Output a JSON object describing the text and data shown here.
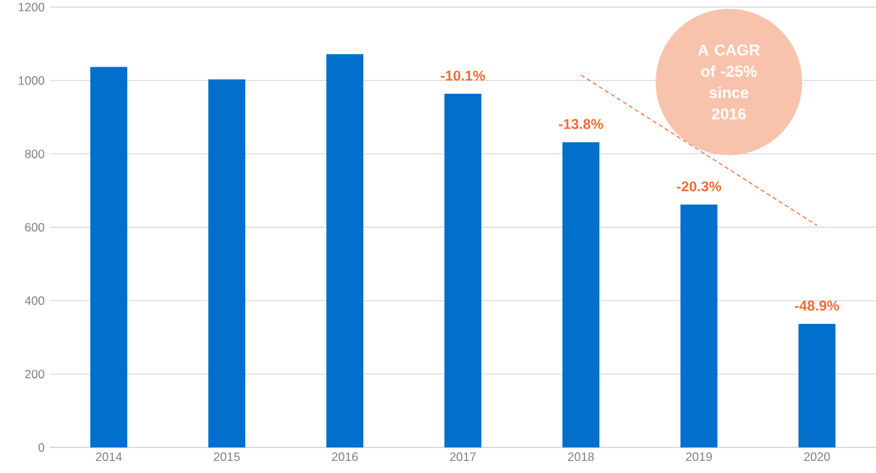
{
  "chart_data": {
    "type": "bar",
    "categories": [
      "2014",
      "2015",
      "2016",
      "2017",
      "2018",
      "2019",
      "2020"
    ],
    "series": [
      {
        "color": "#0070cc",
        "values": [
          1037,
          1003,
          1072,
          964,
          832,
          662,
          337
        ]
      },
      {
        "type": "line",
        "color": "#f26b3a",
        "line_style": "dashed",
        "values": [
          null,
          null,
          null,
          null,
          1015,
          810,
          605
        ]
      }
    ],
    "ylim": [
      0,
      1200
    ],
    "yticks": [
      0,
      200,
      400,
      600,
      800,
      1000,
      1200
    ],
    "grid": "y",
    "annotations": [
      "A CAGR of -25% since 2016",
      {
        "text": "-10.1%",
        "x": "2017",
        "y": 964
      },
      {
        "text": "-13.8%",
        "x": "2018",
        "y": 832
      },
      {
        "text": "-20.3%",
        "x": "2019",
        "y": 662
      },
      {
        "text": "-48.9%",
        "x": "2020",
        "y": 337
      }
    ]
  }
}
